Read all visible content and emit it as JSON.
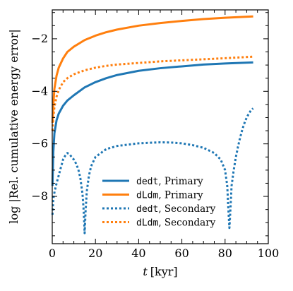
{
  "chart_data": {
    "type": "line",
    "xlabel_var": "t",
    "xlabel_unit": "[kyr]",
    "ylabel": "log |Rel. cumulative energy error|",
    "xlim": [
      0,
      100
    ],
    "ylim": [
      -9.8,
      -0.9
    ],
    "xticks": [
      0,
      20,
      40,
      60,
      80,
      100
    ],
    "yticks": [
      -8,
      -6,
      -4,
      -2
    ],
    "xtick_labels": [
      "0",
      "20",
      "40",
      "60",
      "80",
      "100"
    ],
    "ytick_labels": [
      "−8",
      "−6",
      "−4",
      "−2"
    ],
    "legend_position": "lower center",
    "series": [
      {
        "code": "dedt",
        "suffix": ", Primary",
        "color": "#1f77b4",
        "style": "solid",
        "x": [
          0.1,
          0.5,
          1,
          2,
          3,
          5,
          7,
          10,
          15,
          20,
          25,
          30,
          40,
          50,
          60,
          70,
          80,
          93
        ],
        "y": [
          -7.6,
          -6.3,
          -5.6,
          -5.1,
          -4.85,
          -4.55,
          -4.35,
          -4.15,
          -3.85,
          -3.65,
          -3.5,
          -3.38,
          -3.22,
          -3.12,
          -3.05,
          -2.98,
          -2.94,
          -2.9
        ]
      },
      {
        "code": "dLdm",
        "suffix": ", Primary",
        "color": "#ff7f0e",
        "style": "solid",
        "x": [
          0.1,
          0.5,
          1,
          2,
          3,
          5,
          7,
          10,
          15,
          20,
          25,
          30,
          40,
          50,
          60,
          70,
          80,
          93
        ],
        "y": [
          -5.2,
          -4.5,
          -3.9,
          -3.4,
          -3.1,
          -2.75,
          -2.5,
          -2.3,
          -2.05,
          -1.88,
          -1.75,
          -1.65,
          -1.5,
          -1.4,
          -1.32,
          -1.25,
          -1.2,
          -1.15
        ]
      },
      {
        "code": "dedt",
        "suffix": ", Secondary",
        "color": "#1f77b4",
        "style": "dotted",
        "x": [
          0.1,
          0.5,
          1,
          2,
          3,
          4,
          5,
          6,
          7,
          8,
          9,
          10,
          11,
          12,
          13,
          14,
          14.6,
          15,
          15.4,
          16,
          17,
          18,
          20,
          25,
          30,
          40,
          50,
          55,
          60,
          65,
          70,
          75,
          78,
          80,
          81,
          81.6,
          82,
          82.6,
          83,
          84,
          85,
          86,
          87,
          88,
          89,
          90,
          91,
          92,
          93
        ],
        "y": [
          -8.7,
          -8.1,
          -7.85,
          -7.5,
          -7.2,
          -6.9,
          -6.6,
          -6.45,
          -6.35,
          -6.4,
          -6.5,
          -6.6,
          -6.75,
          -6.95,
          -7.3,
          -7.9,
          -8.6,
          -9.4,
          -8.6,
          -7.8,
          -7.2,
          -6.85,
          -6.5,
          -6.2,
          -6.08,
          -5.98,
          -5.94,
          -5.95,
          -5.98,
          -6.05,
          -6.15,
          -6.35,
          -6.6,
          -7.0,
          -7.6,
          -8.6,
          -9.2,
          -8.3,
          -7.6,
          -7.0,
          -6.5,
          -6.1,
          -5.75,
          -5.45,
          -5.2,
          -5.0,
          -4.85,
          -4.72,
          -4.65
        ]
      },
      {
        "code": "dLdm",
        "suffix": ", Secondary",
        "color": "#ff7f0e",
        "style": "dotted",
        "x": [
          0.1,
          0.5,
          1,
          2,
          3,
          5,
          7,
          10,
          15,
          20,
          25,
          30,
          40,
          50,
          60,
          70,
          80,
          93
        ],
        "y": [
          -5.5,
          -5.0,
          -4.6,
          -4.2,
          -3.95,
          -3.65,
          -3.5,
          -3.35,
          -3.2,
          -3.1,
          -3.03,
          -2.98,
          -2.92,
          -2.86,
          -2.82,
          -2.78,
          -2.74,
          -2.68
        ]
      }
    ]
  }
}
